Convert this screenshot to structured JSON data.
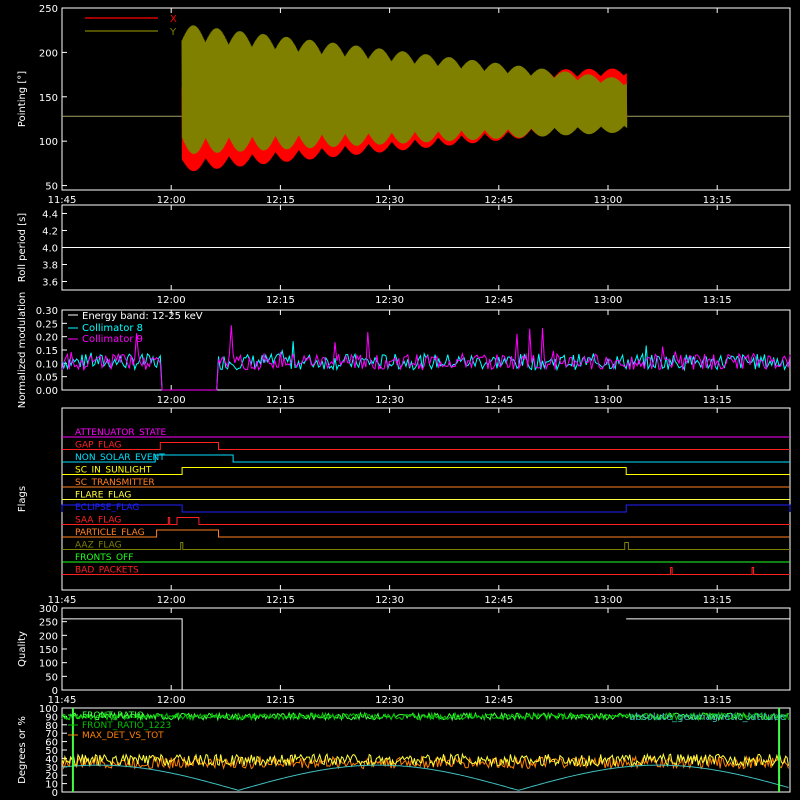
{
  "chart_data": [
    {
      "type": "line",
      "ylabel": "Pointing [°]",
      "yticks": [
        50,
        100,
        150,
        200,
        250
      ],
      "ylim": [
        45,
        250
      ],
      "xticks": [
        "11:45",
        "12:00",
        "12:15",
        "12:30",
        "12:45",
        "13:00",
        "13:15"
      ],
      "xlim_minutes": [
        0,
        100
      ],
      "series": [
        {
          "name": "X",
          "color": "#ff0000",
          "start_minute": 16.5,
          "end_minute": 77.5,
          "upper_start": 175,
          "upper_end": 182,
          "lower_start": 65,
          "lower_end": 115,
          "baseline": 128
        },
        {
          "name": "Y",
          "color": "#808000",
          "start_minute": 16.5,
          "end_minute": 77.5,
          "upper_start": 232,
          "upper_end": 170,
          "lower_start": 85,
          "lower_end": 110,
          "baseline": 128
        }
      ],
      "hline": 128
    },
    {
      "type": "line",
      "ylabel": "Roll period [s]",
      "yticks": [
        3.6,
        3.8,
        4.0,
        4.2,
        4.4
      ],
      "ylim": [
        3.5,
        4.5
      ],
      "xticks": [
        "12:00",
        "12:15",
        "12:30",
        "12:45",
        "13:00",
        "13:15"
      ],
      "series": [
        {
          "name": "Roll period",
          "color": "#ffffff",
          "constant": 4.0
        }
      ]
    },
    {
      "type": "line",
      "ylabel": "Normalized modulation",
      "yticks": [
        0.0,
        0.05,
        0.1,
        0.15,
        0.2,
        0.25,
        0.3
      ],
      "ylim": [
        0.0,
        0.3
      ],
      "xticks": [
        "12:00",
        "12:15",
        "12:30",
        "12:45",
        "13:00",
        "13:15"
      ],
      "annotation": "Energy band: 12-25 keV",
      "gap_minutes": [
        13.5,
        21.5
      ],
      "series": [
        {
          "name": "Collimator 8",
          "color": "#00ffff",
          "baseline": 0.1
        },
        {
          "name": "Collimator 9",
          "color": "#ff00ff",
          "baseline": 0.1
        }
      ]
    },
    {
      "type": "line",
      "ylabel": "Flags",
      "xticks": [
        "11:45",
        "12:00",
        "12:15",
        "12:30",
        "12:45",
        "13:00",
        "13:15"
      ],
      "flags": [
        {
          "name": "ATTENUATOR_STATE",
          "color": "#ff00ff",
          "segments": []
        },
        {
          "name": "GAP_FLAG",
          "color": "#ff2020",
          "segments": [
            [
              13.5,
              21.5
            ]
          ]
        },
        {
          "name": "NON_SOLAR_EVENT",
          "color": "#00e0ff",
          "segments": [
            [
              12.8,
              23.5
            ]
          ]
        },
        {
          "name": "SC_IN_SUNLIGHT",
          "color": "#ffff00",
          "segments": [
            [
              16.5,
              77.5
            ]
          ]
        },
        {
          "name": "SC_TRANSMITTER",
          "color": "#ff8020",
          "segments": []
        },
        {
          "name": "FLARE_FLAG",
          "color": "#ffff40",
          "segments": []
        },
        {
          "name": "ECLIPSE_FLAG",
          "color": "#2020ff",
          "segments": [
            [
              0,
              16.5
            ],
            [
              77.5,
              100
            ]
          ]
        },
        {
          "name": "SAA_FLAG",
          "color": "#ff2020",
          "segments": [
            [
              14.6,
              14.8
            ],
            [
              15.8,
              18.8
            ]
          ]
        },
        {
          "name": "PARTICLE_FLAG",
          "color": "#ff8020",
          "segments": [
            [
              13.0,
              21.5
            ]
          ]
        },
        {
          "name": "AAZ_FLAG",
          "color": "#808000",
          "segments": [
            [
              16.3,
              16.6
            ],
            [
              77.3,
              77.8
            ]
          ]
        },
        {
          "name": "FRONTS_OFF",
          "color": "#20ff20",
          "segments": []
        },
        {
          "name": "BAD_PACKETS",
          "color": "#ff2020",
          "segments": [
            [
              83.6,
              83.8
            ],
            [
              94.8,
              95.0
            ]
          ]
        }
      ]
    },
    {
      "type": "line",
      "ylabel": "Quality",
      "yticks": [
        0,
        50,
        100,
        150,
        200,
        250,
        300
      ],
      "ylim": [
        0,
        300
      ],
      "xticks": [
        "11:45",
        "12:00",
        "12:15",
        "12:30",
        "12:45",
        "13:00",
        "13:15"
      ],
      "series": [
        {
          "name": "Quality",
          "color": "#ffffff",
          "segments": [
            [
              0,
              16.5,
              260
            ],
            [
              77.5,
              100,
              260
            ]
          ],
          "mid_value": 0
        }
      ]
    },
    {
      "type": "line",
      "ylabel": "Degrees or %",
      "yticks": [
        0,
        10,
        20,
        30,
        40,
        50,
        60,
        70,
        80,
        90,
        100
      ],
      "ylim": [
        0,
        100
      ],
      "legend_position": "top-left",
      "series": [
        {
          "name": "FRONT_RATIO",
          "color": "#40ff40",
          "baseline": 90
        },
        {
          "name": "FRONT_RATIO_1223",
          "color": "#00c000",
          "baseline": 90
        },
        {
          "name": "MAX_DET_VS_TOT",
          "color": "#ff8000",
          "baseline": 35
        },
        {
          "name": "",
          "color": "#ffff40",
          "baseline": 38
        },
        {
          "name": "absolute_geomagnetic_latitude",
          "color": "#40c0c0",
          "baseline": 30
        }
      ]
    }
  ]
}
